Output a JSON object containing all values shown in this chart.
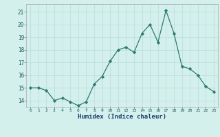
{
  "x": [
    0,
    1,
    2,
    3,
    4,
    5,
    6,
    7,
    8,
    9,
    10,
    11,
    12,
    13,
    14,
    15,
    16,
    17,
    18,
    19,
    20,
    21,
    22,
    23
  ],
  "y": [
    15.0,
    15.0,
    14.8,
    14.0,
    14.2,
    13.9,
    13.6,
    13.9,
    15.3,
    15.9,
    17.1,
    18.0,
    18.2,
    17.8,
    19.3,
    20.0,
    18.6,
    21.1,
    19.3,
    16.7,
    16.5,
    16.0,
    15.1,
    14.7
  ],
  "line_color": "#2d7a6e",
  "marker": "D",
  "marker_size": 2.2,
  "bg_color": "#d4f0ec",
  "grid_color": "#b8dbd8",
  "xlabel": "Humidex (Indice chaleur)",
  "ylabel_ticks": [
    14,
    15,
    16,
    17,
    18,
    19,
    20,
    21
  ],
  "xtick_labels": [
    "0",
    "1",
    "2",
    "3",
    "4",
    "5",
    "6",
    "7",
    "8",
    "9",
    "10",
    "11",
    "12",
    "13",
    "14",
    "15",
    "16",
    "17",
    "18",
    "19",
    "20",
    "21",
    "22",
    "23"
  ],
  "xlim": [
    -0.5,
    23.5
  ],
  "ylim": [
    13.5,
    21.6
  ]
}
